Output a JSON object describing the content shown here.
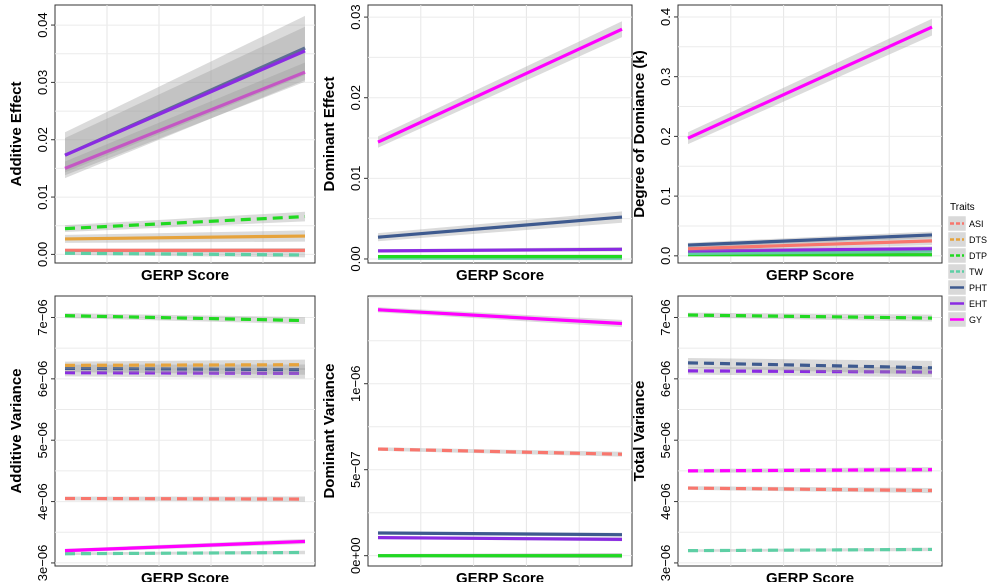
{
  "legend": {
    "title": "Traits",
    "placement": "right",
    "items": [
      {
        "name": "ASI",
        "color": "#F8766D",
        "dash": true
      },
      {
        "name": "DTS",
        "color": "#E6A33C",
        "dash": true
      },
      {
        "name": "DTP",
        "color": "#21D921",
        "dash": true
      },
      {
        "name": "TW",
        "color": "#5ECFA5",
        "dash": true
      },
      {
        "name": "PHT",
        "color": "#3E5A8F",
        "dash": false
      },
      {
        "name": "EHT",
        "color": "#8A2BE2",
        "dash": false
      },
      {
        "name": "GY",
        "color": "#FF00FF",
        "dash": false
      }
    ]
  },
  "chart_data": [
    {
      "type": "line",
      "xlabel": "GERP Score",
      "ylabel": "Additive Effect",
      "ylim": [
        -0.0015,
        0.0435
      ],
      "yticks": [
        {
          "v": 0.0,
          "label": "0.00"
        },
        {
          "v": 0.01,
          "label": "0.01"
        },
        {
          "v": 0.02,
          "label": "0.02"
        },
        {
          "v": 0.03,
          "label": "0.03"
        },
        {
          "v": 0.04,
          "label": "0.04"
        }
      ],
      "grid": true,
      "series": [
        {
          "name": "ASI",
          "values": [
            0.0007,
            0.0007
          ],
          "style": "solid",
          "ci": 0.0003
        },
        {
          "name": "TW",
          "values": [
            0.0002,
            -0.0001
          ],
          "style": "dash",
          "ci": 0.0003
        },
        {
          "name": "DTS",
          "values": [
            0.0027,
            0.0032
          ],
          "style": "solid",
          "ci": 0.0007
        },
        {
          "name": "DTP",
          "values": [
            0.0045,
            0.0066
          ],
          "style": "dash",
          "ci": 0.0006
        },
        {
          "name": "GY",
          "values": [
            0.015,
            0.0318
          ],
          "style": "solid",
          "ci": 0.0012
        },
        {
          "name": "PHT",
          "values": [
            0.0173,
            0.036
          ],
          "style": "solid",
          "ci": 0.004
        },
        {
          "name": "EHT",
          "values": [
            0.0173,
            0.0355
          ],
          "style": "solid",
          "ci": 0.003
        }
      ]
    },
    {
      "type": "line",
      "xlabel": "GERP Score",
      "ylabel": "Dominant Effect",
      "ylim": [
        -0.0005,
        0.0315
      ],
      "yticks": [
        {
          "v": 0.0,
          "label": "0.00"
        },
        {
          "v": 0.01,
          "label": "0.01"
        },
        {
          "v": 0.02,
          "label": "0.02"
        },
        {
          "v": 0.03,
          "label": "0.03"
        }
      ],
      "grid": true,
      "series": [
        {
          "name": "TW",
          "values": [
            0.0001,
            0.0001
          ],
          "style": "solid",
          "ci": 0.0002
        },
        {
          "name": "DTP",
          "values": [
            0.0003,
            0.0003
          ],
          "style": "solid",
          "ci": 0.0002
        },
        {
          "name": "EHT",
          "values": [
            0.001,
            0.0012
          ],
          "style": "solid",
          "ci": 0.0002
        },
        {
          "name": "PHT",
          "values": [
            0.0027,
            0.0052
          ],
          "style": "solid",
          "ci": 0.0005
        },
        {
          "name": "GY",
          "values": [
            0.0145,
            0.0285
          ],
          "style": "solid",
          "ci": 0.0007
        }
      ]
    },
    {
      "type": "line",
      "xlabel": "GERP Score",
      "ylabel": "Degree of Domiance (k)",
      "ylim": [
        -0.012,
        0.42
      ],
      "yticks": [
        {
          "v": 0.0,
          "label": "0.0"
        },
        {
          "v": 0.1,
          "label": "0.1"
        },
        {
          "v": 0.2,
          "label": "0.2"
        },
        {
          "v": 0.3,
          "label": "0.3"
        },
        {
          "v": 0.4,
          "label": "0.4"
        }
      ],
      "grid": true,
      "series": [
        {
          "name": "DTP",
          "values": [
            0.002,
            0.002
          ],
          "style": "solid",
          "ci": 0.003
        },
        {
          "name": "TW",
          "values": [
            0.004,
            0.008
          ],
          "style": "solid",
          "ci": 0.003
        },
        {
          "name": "EHT",
          "values": [
            0.008,
            0.012
          ],
          "style": "solid",
          "ci": 0.003
        },
        {
          "name": "ASI",
          "values": [
            0.012,
            0.025
          ],
          "style": "solid",
          "ci": 0.005
        },
        {
          "name": "PHT",
          "values": [
            0.018,
            0.035
          ],
          "style": "solid",
          "ci": 0.004
        },
        {
          "name": "GY",
          "values": [
            0.197,
            0.383
          ],
          "style": "solid",
          "ci": 0.01
        }
      ]
    },
    {
      "type": "line",
      "xlabel": "GERP Score",
      "ylabel": "Additive Variance",
      "ylim": [
        2.95e-06,
        7.35e-06
      ],
      "yticks": [
        {
          "v": 3e-06,
          "label": "3e−06"
        },
        {
          "v": 4e-06,
          "label": "4e−06"
        },
        {
          "v": 5e-06,
          "label": "5e−06"
        },
        {
          "v": 6e-06,
          "label": "6e−06"
        },
        {
          "v": 7e-06,
          "label": "7e−06"
        }
      ],
      "grid": true,
      "series": [
        {
          "name": "TW",
          "values": [
            3.15e-06,
            3.17e-06
          ],
          "style": "dash",
          "ci": 2e-08
        },
        {
          "name": "GY",
          "values": [
            3.2e-06,
            3.35e-06
          ],
          "style": "solid",
          "ci": 3e-08
        },
        {
          "name": "ASI",
          "values": [
            4.05e-06,
            4.04e-06
          ],
          "style": "dash",
          "ci": 3e-08
        },
        {
          "name": "EHT",
          "values": [
            6.1e-06,
            6.09e-06
          ],
          "style": "dash",
          "ci": 6e-08
        },
        {
          "name": "PHT",
          "values": [
            6.17e-06,
            6.15e-06
          ],
          "style": "dash",
          "ci": 6e-08
        },
        {
          "name": "DTS",
          "values": [
            6.22e-06,
            6.23e-06
          ],
          "style": "dash",
          "ci": 6e-08
        },
        {
          "name": "DTP",
          "values": [
            7.03e-06,
            6.95e-06
          ],
          "style": "dash",
          "ci": 4e-08
        }
      ]
    },
    {
      "type": "line",
      "xlabel": "GERP Score",
      "ylabel": "Dominant Variance",
      "ylim": [
        -6e-08,
        1.51e-06
      ],
      "yticks": [
        {
          "v": 0.0,
          "label": "0e+00"
        },
        {
          "v": 5e-07,
          "label": "5e−07"
        },
        {
          "v": 1e-06,
          "label": "1e−06"
        }
      ],
      "grid": true,
      "series": [
        {
          "name": "TW",
          "values": [
            0.0,
            0.0
          ],
          "style": "solid",
          "ci": 1e-08
        },
        {
          "name": "DTP",
          "values": [
            0.0,
            0.0
          ],
          "style": "solid",
          "ci": 1e-08
        },
        {
          "name": "EHT",
          "values": [
            1.05e-07,
            9.5e-08
          ],
          "style": "solid",
          "ci": 8e-09
        },
        {
          "name": "PHT",
          "values": [
            1.32e-07,
            1.22e-07
          ],
          "style": "solid",
          "ci": 8e-09
        },
        {
          "name": "ASI",
          "values": [
            6.2e-07,
            5.9e-07
          ],
          "style": "dash",
          "ci": 1e-08
        },
        {
          "name": "GY",
          "values": [
            1.43e-06,
            1.35e-06
          ],
          "style": "solid",
          "ci": 1.5e-08
        }
      ]
    },
    {
      "type": "line",
      "xlabel": "GERP Score",
      "ylabel": "Total Variance",
      "ylim": [
        2.95e-06,
        7.35e-06
      ],
      "yticks": [
        {
          "v": 3e-06,
          "label": "3e−06"
        },
        {
          "v": 4e-06,
          "label": "4e−06"
        },
        {
          "v": 5e-06,
          "label": "5e−06"
        },
        {
          "v": 6e-06,
          "label": "6e−06"
        },
        {
          "v": 7e-06,
          "label": "7e−06"
        }
      ],
      "grid": true,
      "series": [
        {
          "name": "TW",
          "values": [
            3.2e-06,
            3.22e-06
          ],
          "style": "dash",
          "ci": 2e-08
        },
        {
          "name": "ASI",
          "values": [
            4.22e-06,
            4.18e-06
          ],
          "style": "dash",
          "ci": 3e-08
        },
        {
          "name": "GY",
          "values": [
            4.5e-06,
            4.52e-06
          ],
          "style": "dash",
          "ci": 3e-08
        },
        {
          "name": "EHT",
          "values": [
            6.13e-06,
            6.11e-06
          ],
          "style": "dash",
          "ci": 6e-08
        },
        {
          "name": "PHT",
          "values": [
            6.26e-06,
            6.18e-06
          ],
          "style": "dash",
          "ci": 8e-08
        },
        {
          "name": "DTP",
          "values": [
            7.04e-06,
            6.99e-06
          ],
          "style": "dash",
          "ci": 4e-08
        }
      ]
    }
  ]
}
